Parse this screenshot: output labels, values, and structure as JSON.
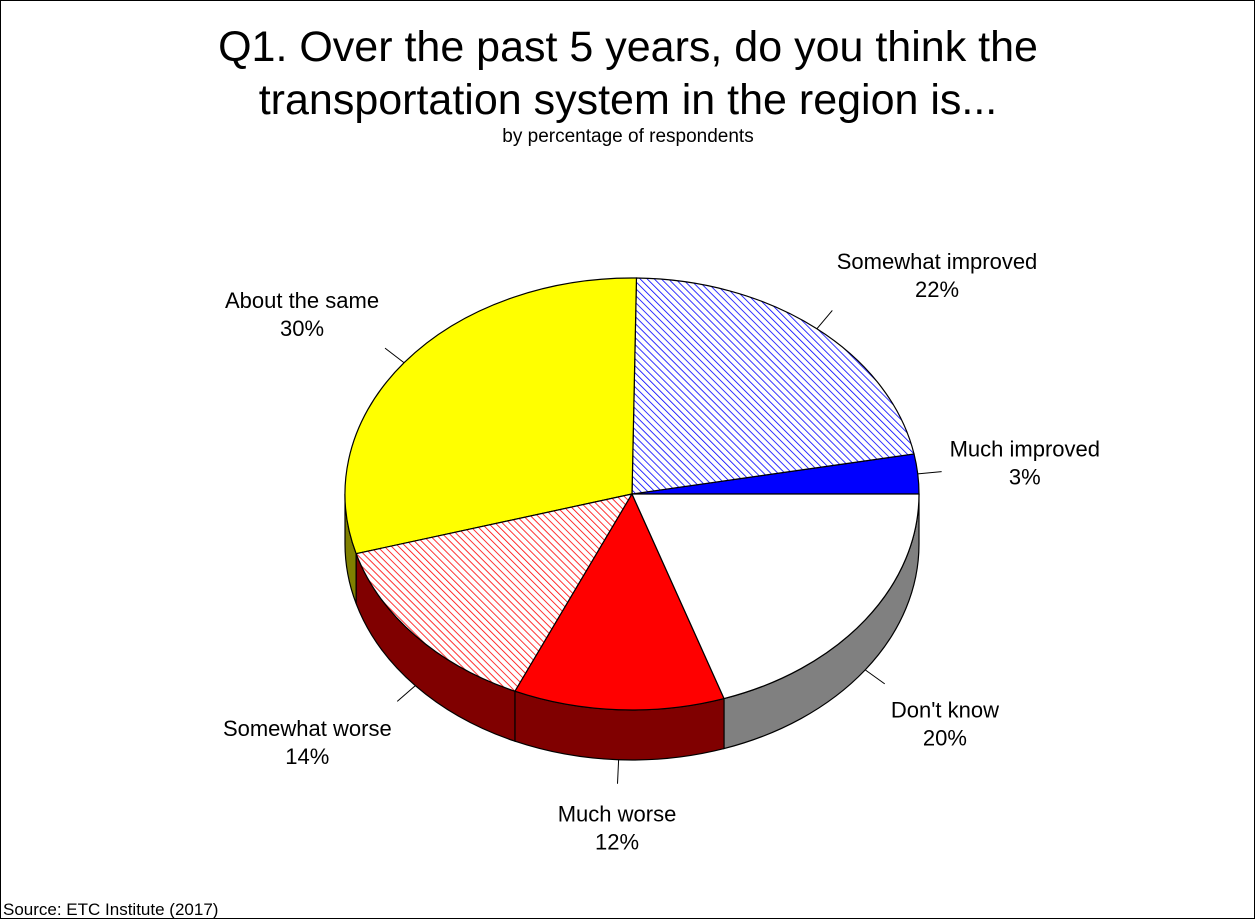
{
  "title_lines": [
    "Q1. Over the past 5 years, do you think the",
    "transportation system in the region is..."
  ],
  "subtitle": "by percentage of respondents",
  "source": "Source:  ETC Institute (2017)",
  "chart_data": {
    "type": "pie",
    "style": "3d",
    "slices": [
      {
        "label": "Much improved",
        "value": 3,
        "value_label": "3%",
        "color": "#0000ff",
        "pattern": "solid"
      },
      {
        "label": "Somewhat improved",
        "value": 22,
        "value_label": "22%",
        "color": "#0000ff",
        "pattern": "hatch"
      },
      {
        "label": "About the same",
        "value": 30,
        "value_label": "30%",
        "color": "#ffff00",
        "pattern": "solid"
      },
      {
        "label": "Somewhat worse",
        "value": 14,
        "value_label": "14%",
        "color": "#ff0000",
        "pattern": "hatch"
      },
      {
        "label": "Much worse",
        "value": 12,
        "value_label": "12%",
        "color": "#ff0000",
        "pattern": "solid"
      },
      {
        "label": "Don't know",
        "value": 20,
        "value_label": "20%",
        "color": "#ffffff",
        "pattern": "solid"
      }
    ]
  }
}
